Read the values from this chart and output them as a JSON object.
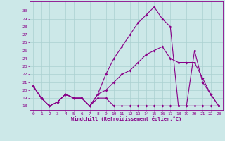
{
  "xlabel": "Windchill (Refroidissement éolien,°C)",
  "x": [
    0,
    1,
    2,
    3,
    4,
    5,
    6,
    7,
    8,
    9,
    10,
    11,
    12,
    13,
    14,
    15,
    16,
    17,
    18,
    19,
    20,
    21,
    22,
    23
  ],
  "line1": [
    20.5,
    19.0,
    18.0,
    18.5,
    19.5,
    19.0,
    19.0,
    18.0,
    19.5,
    22.0,
    24.0,
    25.5,
    27.0,
    28.5,
    29.5,
    30.5,
    29.0,
    28.0,
    18.0,
    18.0,
    25.0,
    21.0,
    19.5,
    18.0
  ],
  "line2": [
    20.5,
    19.0,
    18.0,
    18.5,
    19.5,
    19.0,
    19.0,
    18.0,
    19.0,
    19.0,
    18.0,
    18.0,
    18.0,
    18.0,
    18.0,
    18.0,
    18.0,
    18.0,
    18.0,
    18.0,
    18.0,
    18.0,
    18.0,
    18.0
  ],
  "line3": [
    20.5,
    19.0,
    18.0,
    18.5,
    19.5,
    19.0,
    19.0,
    18.0,
    19.5,
    20.0,
    21.0,
    22.0,
    22.5,
    23.5,
    24.5,
    25.0,
    25.5,
    24.0,
    23.5,
    23.5,
    23.5,
    21.5,
    19.5,
    18.0
  ],
  "line_color": "#880088",
  "bg_color": "#cce8e8",
  "grid_color": "#aad0d0",
  "ylim": [
    17.5,
    31.2
  ],
  "xlim": [
    -0.5,
    23.5
  ],
  "yticks": [
    18,
    19,
    20,
    21,
    22,
    23,
    24,
    25,
    26,
    27,
    28,
    29,
    30
  ],
  "xticks": [
    0,
    1,
    2,
    3,
    4,
    5,
    6,
    7,
    8,
    9,
    10,
    11,
    12,
    13,
    14,
    15,
    16,
    17,
    18,
    19,
    20,
    21,
    22,
    23
  ],
  "markersize": 2.0,
  "linewidth": 0.8,
  "tick_fontsize": 4.5,
  "xlabel_fontsize": 5.0
}
